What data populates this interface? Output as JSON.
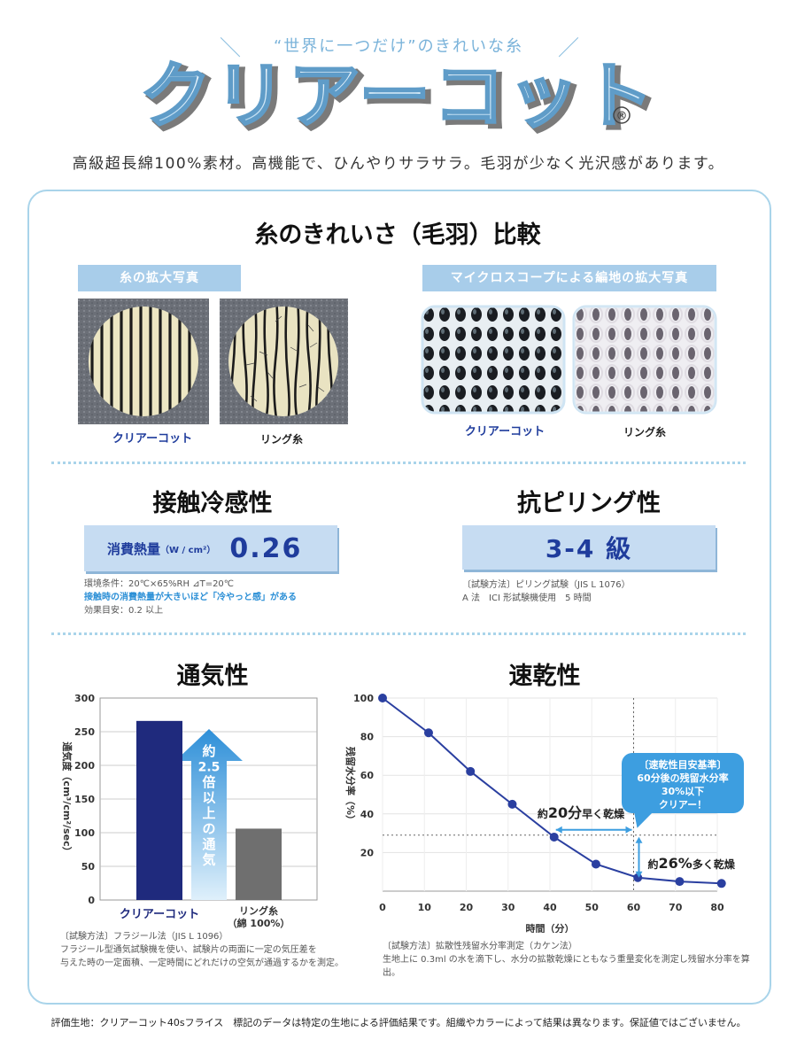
{
  "header": {
    "tagline": "“世界に一つだけ”のきれいな糸",
    "brand": "クリアーコット",
    "registered_mark": "®",
    "subtitle": "高級超長綿100%素材。高機能で、ひんやりサラサラ。毛羽が少なく光沢感があります。"
  },
  "fuzz_section": {
    "title": "糸のきれいさ（毛羽）比較",
    "yarn_label": "糸の拡大写真",
    "fabric_label": "マイクロスコープによる編地の拡大写真",
    "captions": [
      "クリアーコット",
      "リング糸",
      "クリアーコット",
      "リング糸"
    ]
  },
  "contact_cool": {
    "title": "接触冷感性",
    "metric_label": "消費熱量",
    "metric_unit": "（W / cm²）",
    "value": "0.26",
    "note1": "環境条件：20℃×65%RH  ⊿T=20℃",
    "note2": "接触時の消費熱量が大きいほど「冷やっと感」がある",
    "note3": "効果目安：0.2 以上"
  },
  "pilling": {
    "title": "抗ピリング性",
    "value": "3-4 級",
    "note1": "〔試験方法〕ピリング試験（JIS L 1076）",
    "note2": "A 法　ICI 形試験機使用　5 時間"
  },
  "colors": {
    "accent": "#a9d4ea",
    "navy": "#1f2a7d",
    "gray_bar": "#6f6f6f",
    "line": "#2a3fa0",
    "highlight": "#3d9ee0"
  },
  "chart_data": [
    {
      "type": "bar",
      "title": "通気性",
      "ylabel": "通気度（cm³/cm²/sec）",
      "ylim": [
        0,
        300
      ],
      "yticks": [
        0,
        50,
        100,
        150,
        200,
        250,
        300
      ],
      "categories": [
        "クリアーコット",
        "リング糸\n（綿 100%）"
      ],
      "values": [
        266,
        106
      ],
      "colors": [
        "#1f2a7d",
        "#6f6f6f"
      ],
      "arrow_text": [
        "約",
        "2.5",
        "倍",
        "以",
        "上",
        "の",
        "通",
        "気"
      ],
      "note1": "〔試験方法〕フラジール法（JIS L 1096）",
      "note2": "フラジール型通気試験機を使い、試験片の両面に一定の気圧差を",
      "note3": "与えた時の一定面積、一定時間にどれだけの空気が通過するかを測定。"
    },
    {
      "type": "line",
      "title": "速乾性",
      "xlabel": "時間（分）",
      "ylabel": "残留水分率（%）",
      "xlim": [
        0,
        80
      ],
      "ylim": [
        0,
        100
      ],
      "xticks": [
        0,
        10,
        20,
        30,
        40,
        50,
        60,
        70,
        80
      ],
      "yticks": [
        20,
        40,
        60,
        80,
        100
      ],
      "series": [
        {
          "x": [
            0,
            11,
            21,
            31,
            41,
            51,
            61,
            71,
            81
          ],
          "y": [
            100,
            82,
            62,
            45,
            28,
            14,
            7,
            5,
            4
          ]
        }
      ],
      "reference_x": 60,
      "reference_y": 29,
      "callout": [
        "〔速乾性目安基準〕",
        "60分後の残留水分率",
        "30%以下",
        "クリアー！"
      ],
      "annotation_time": [
        "約",
        "20分",
        "早く乾燥"
      ],
      "annotation_rate": [
        "約",
        "26%",
        "多く乾燥"
      ],
      "note1": "〔試験方法〕拡散性残留水分率測定（カケン法）",
      "note2": "生地上に 0.3ml の水を滴下し、水分の拡散乾燥にともなう重量変化を測定し残留水分率を算出。"
    }
  ],
  "footer": "評価生地：クリアーコット40sフライス　標記のデータは特定の生地による評価結果です。組織やカラーによって結果は異なります。保証値ではございません。"
}
